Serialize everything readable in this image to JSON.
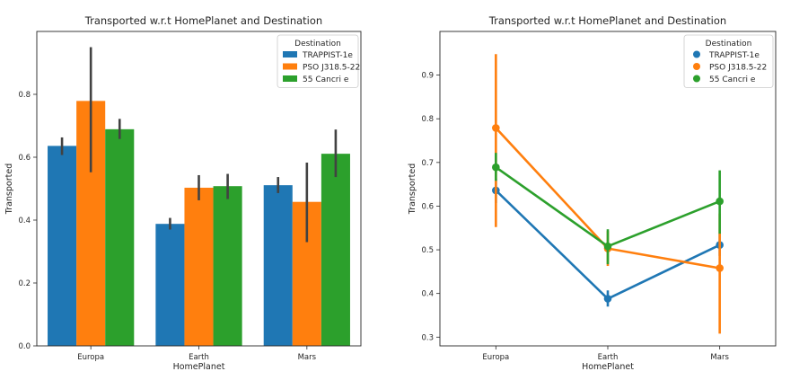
{
  "chart_data": [
    {
      "type": "bar",
      "title": "Transported w.r.t HomePlanet and Destination",
      "xlabel": "HomePlanet",
      "ylabel": "Transported",
      "categories": [
        "Europa",
        "Earth",
        "Mars"
      ],
      "ylim": [
        0,
        1.0
      ],
      "yticks": [
        0.0,
        0.2,
        0.4,
        0.6,
        0.8
      ],
      "ytick_labels": [
        "0.0",
        "0.2",
        "0.4",
        "0.6",
        "0.8"
      ],
      "legend": {
        "title": "Destination",
        "placement": "top-right"
      },
      "grid": false,
      "series": [
        {
          "name": "TRAPPIST-1e",
          "color": "#1f77b4",
          "values": [
            0.636,
            0.388,
            0.511
          ],
          "err_low": [
            0.607,
            0.37,
            0.486
          ],
          "err_high": [
            0.663,
            0.407,
            0.537
          ]
        },
        {
          "name": "PSO J318.5-22",
          "color": "#ff7f0e",
          "values": [
            0.779,
            0.503,
            0.458
          ],
          "err_low": [
            0.552,
            0.463,
            0.33
          ],
          "err_high": [
            0.95,
            0.543,
            0.583
          ]
        },
        {
          "name": "55 Cancri e",
          "color": "#2ca02c",
          "values": [
            0.689,
            0.508,
            0.611
          ],
          "err_low": [
            0.658,
            0.467,
            0.537
          ],
          "err_high": [
            0.722,
            0.547,
            0.688
          ]
        }
      ]
    },
    {
      "type": "line",
      "title": "Transported w.r.t HomePlanet and Destination",
      "xlabel": "HomePlanet",
      "ylabel": "Transported",
      "categories": [
        "Europa",
        "Earth",
        "Mars"
      ],
      "ylim": [
        0.28,
        1.0
      ],
      "yticks": [
        0.3,
        0.4,
        0.5,
        0.6,
        0.7,
        0.8,
        0.9
      ],
      "ytick_labels": [
        "0.3",
        "0.4",
        "0.5",
        "0.6",
        "0.7",
        "0.8",
        "0.9"
      ],
      "legend": {
        "title": "Destination",
        "placement": "top-right"
      },
      "grid": false,
      "series": [
        {
          "name": "TRAPPIST-1e",
          "color": "#1f77b4",
          "values": [
            0.636,
            0.388,
            0.511
          ],
          "err_low": [
            0.607,
            0.37,
            0.486
          ],
          "err_high": [
            0.663,
            0.407,
            0.537
          ]
        },
        {
          "name": "PSO J318.5-22",
          "color": "#ff7f0e",
          "values": [
            0.779,
            0.503,
            0.458
          ],
          "err_low": [
            0.552,
            0.463,
            0.308
          ],
          "err_high": [
            0.948,
            0.543,
            0.583
          ]
        },
        {
          "name": "55 Cancri e",
          "color": "#2ca02c",
          "values": [
            0.689,
            0.508,
            0.611
          ],
          "err_low": [
            0.658,
            0.467,
            0.537
          ],
          "err_high": [
            0.722,
            0.547,
            0.682
          ]
        }
      ]
    }
  ]
}
